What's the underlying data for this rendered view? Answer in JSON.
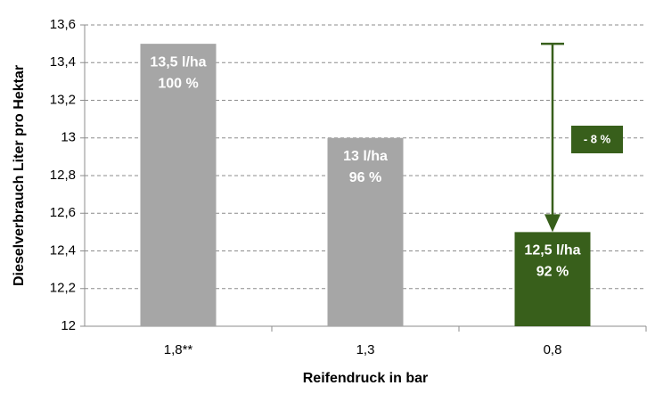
{
  "chart_data": {
    "type": "bar",
    "y_label": "Dieselverbrauch  Liter pro Hektar",
    "x_label": "Reifendruck  in bar",
    "categories": [
      "1,8**",
      "1,3",
      "0,8"
    ],
    "values": [
      13.5,
      13,
      12.5
    ],
    "value_labels": [
      "13,5 l/ha",
      "13 l/ha",
      "12,5 l/ha"
    ],
    "percent_labels": [
      "100 %",
      "96 %",
      "92 %"
    ],
    "colors": [
      "#a6a6a6",
      "#a6a6a6",
      "#385f1b"
    ],
    "annotation": "- 8 %",
    "arrow_color": "#385f1b",
    "ylim": [
      12,
      13.6
    ],
    "yticks": [
      12,
      {
        "value": 12.2,
        "label": "12,2"
      },
      {
        "value": 12.4,
        "label": "12,4"
      },
      {
        "value": 12.6,
        "label": "12,6"
      },
      {
        "value": 12.8,
        "label": "12,8"
      },
      13,
      {
        "value": 13.2,
        "label": "13,2"
      },
      {
        "value": 13.4,
        "label": "13,4"
      },
      {
        "value": 13.6,
        "label": "13,6"
      }
    ],
    "grid": true
  }
}
